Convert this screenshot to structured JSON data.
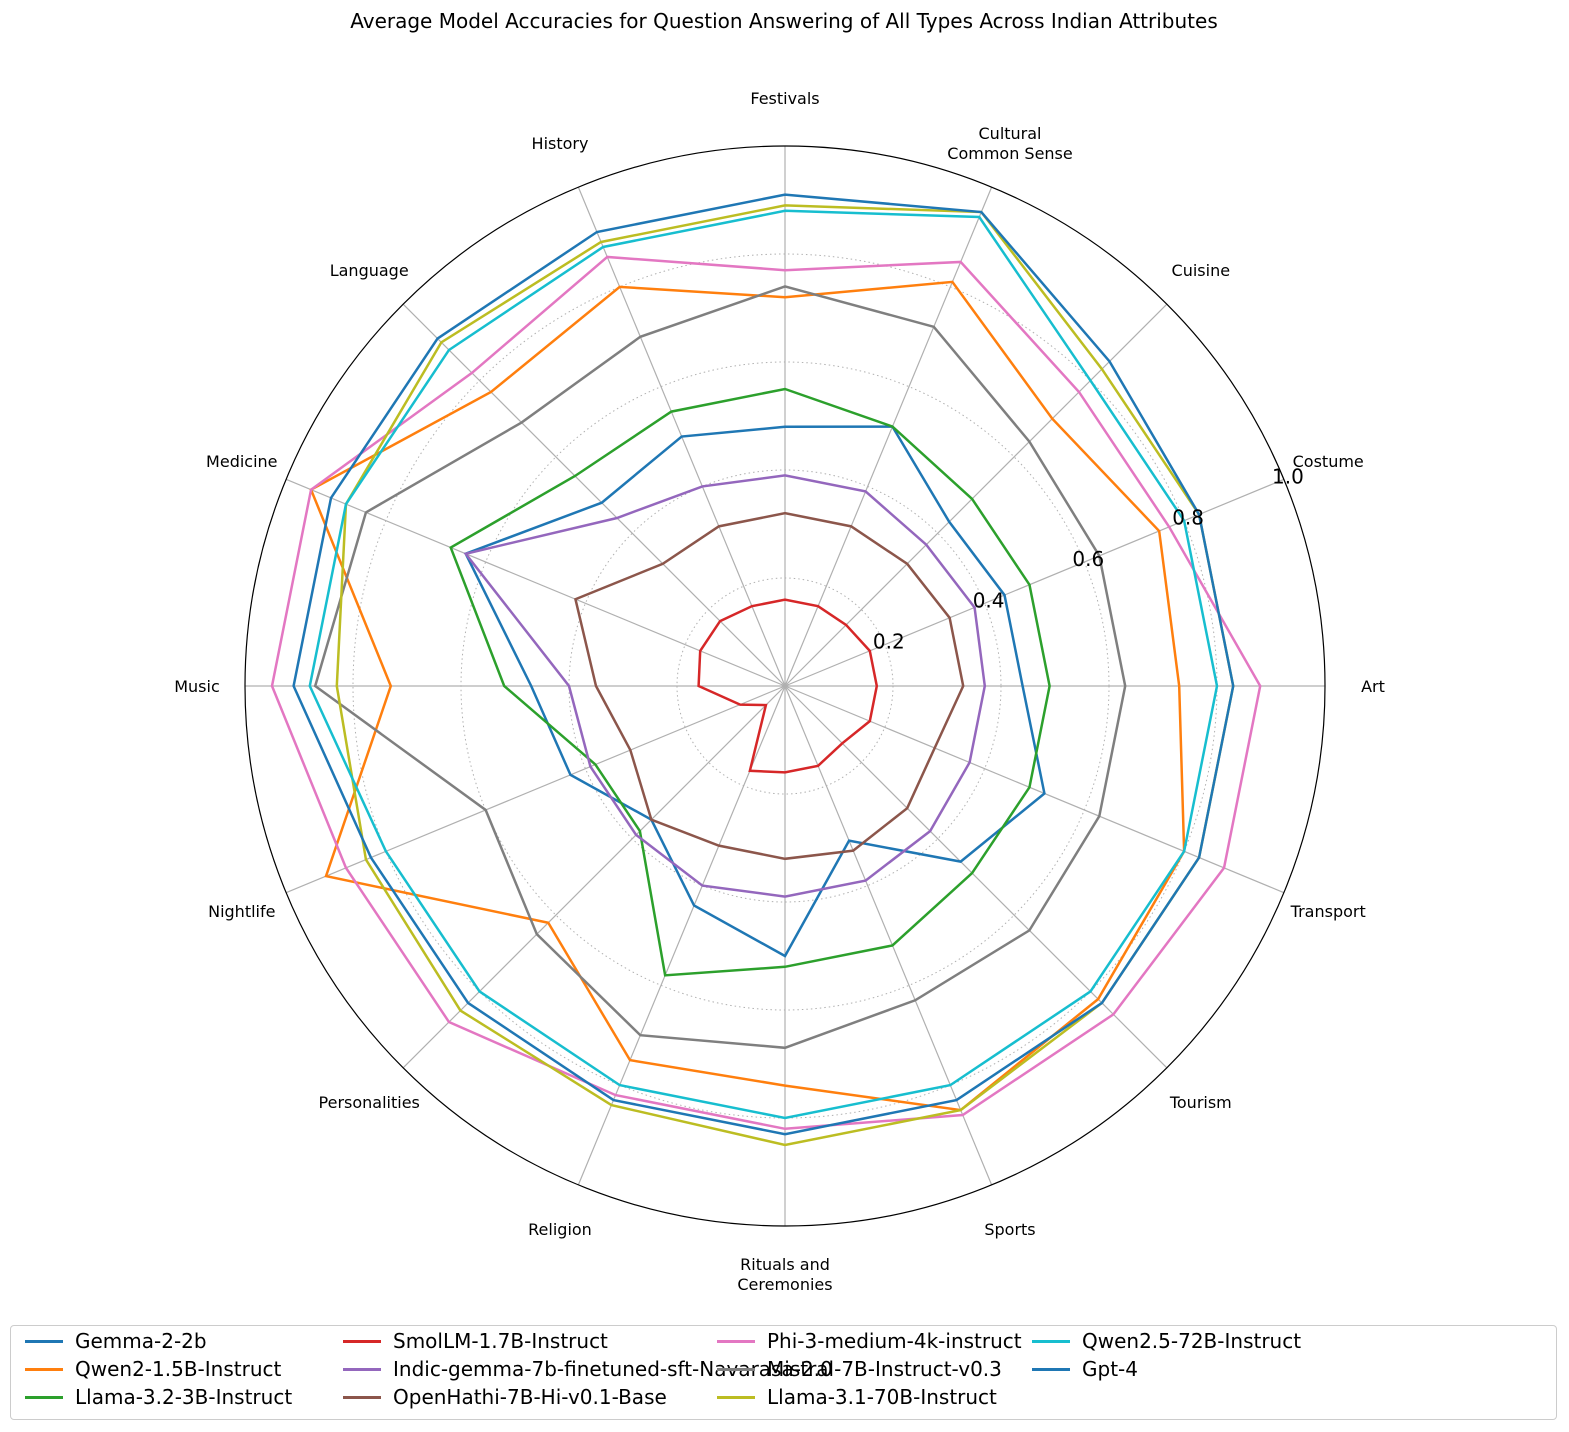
{
  "chart_data": {
    "type": "radar",
    "title": "Average Model Accuracies for Question Answering of All Types Across Indian Attributes",
    "categories": [
      "Art",
      "Costume",
      "Cuisine",
      "Cultural\nCommon Sense",
      "Festivals",
      "History",
      "Language",
      "Medicine",
      "Music",
      "Nightlife",
      "Personalities",
      "Religion",
      "Rituals and\nCeremonies",
      "Sports",
      "Tourism",
      "Transport"
    ],
    "rlim": [
      0,
      1.0
    ],
    "radial_ticks": [
      "0.2",
      "0.4",
      "0.6",
      "0.8",
      "1.0"
    ],
    "radial_tick_values": [
      0.2,
      0.4,
      0.6,
      0.8,
      1.0
    ],
    "grid": true,
    "legend_position": "bottom",
    "series": [
      {
        "name": "Gemma-2-2b",
        "color": "#1f77b4",
        "values": [
          0.44,
          0.44,
          0.43,
          0.52,
          0.48,
          0.5,
          0.48,
          0.64,
          0.47,
          0.43,
          0.35,
          0.44,
          0.5,
          0.31,
          0.46,
          0.52
        ]
      },
      {
        "name": "Qwen2-1.5B-Instruct",
        "color": "#ff7f0e",
        "values": [
          0.73,
          0.75,
          0.7,
          0.81,
          0.72,
          0.8,
          0.77,
          0.95,
          0.73,
          0.92,
          0.62,
          0.75,
          0.74,
          0.85,
          0.82,
          0.8
        ]
      },
      {
        "name": "Llama-3.2-3B-Instruct",
        "color": "#2ca02c",
        "values": [
          0.49,
          0.49,
          0.49,
          0.52,
          0.55,
          0.55,
          0.55,
          0.67,
          0.52,
          0.38,
          0.38,
          0.58,
          0.52,
          0.52,
          0.49,
          0.49
        ]
      },
      {
        "name": "SmolLM-1.7B-Instruct",
        "color": "#d62728",
        "values": [
          0.17,
          0.17,
          0.16,
          0.16,
          0.16,
          0.16,
          0.17,
          0.17,
          0.16,
          0.09,
          0.05,
          0.17,
          0.16,
          0.16,
          0.15,
          0.17
        ]
      },
      {
        "name": "Indic-gemma-7b-finetuned-sft-Navarasa-2.0",
        "color": "#9467bd",
        "values": [
          0.37,
          0.38,
          0.37,
          0.39,
          0.39,
          0.4,
          0.44,
          0.64,
          0.4,
          0.39,
          0.39,
          0.4,
          0.39,
          0.39,
          0.38,
          0.37
        ]
      },
      {
        "name": "OpenHathi-7B-Hi-v0.1-Base",
        "color": "#8c564b",
        "values": [
          0.33,
          0.33,
          0.32,
          0.32,
          0.32,
          0.32,
          0.32,
          0.42,
          0.35,
          0.31,
          0.35,
          0.32,
          0.32,
          0.33,
          0.32,
          0.3
        ]
      },
      {
        "name": "Phi-3-medium-4k-instruct",
        "color": "#e377c2",
        "values": [
          0.88,
          0.77,
          0.77,
          0.85,
          0.77,
          0.86,
          0.82,
          0.95,
          0.95,
          0.88,
          0.88,
          0.82,
          0.82,
          0.86,
          0.86,
          0.88
        ]
      },
      {
        "name": "Mistral-7B-Instruct-v0.3",
        "color": "#7f7f7f",
        "values": [
          0.63,
          0.63,
          0.64,
          0.72,
          0.74,
          0.7,
          0.69,
          0.84,
          0.87,
          0.6,
          0.65,
          0.7,
          0.67,
          0.63,
          0.64,
          0.63
        ]
      },
      {
        "name": "Llama-3.1-70B-Instruct",
        "color": "#bcbd22",
        "values": [
          0.83,
          0.83,
          0.83,
          0.95,
          0.89,
          0.89,
          0.9,
          0.88,
          0.83,
          0.84,
          0.85,
          0.84,
          0.85,
          0.85,
          0.83,
          0.83
        ]
      },
      {
        "name": "Qwen2.5-72B-Instruct",
        "color": "#17becf",
        "values": [
          0.8,
          0.8,
          0.8,
          0.94,
          0.88,
          0.88,
          0.88,
          0.88,
          0.88,
          0.8,
          0.8,
          0.8,
          0.8,
          0.8,
          0.8,
          0.8
        ]
      },
      {
        "name": "Gpt-4",
        "color": "#1f77b4",
        "values": [
          0.83,
          0.83,
          0.85,
          0.95,
          0.91,
          0.91,
          0.91,
          0.91,
          0.91,
          0.83,
          0.83,
          0.83,
          0.83,
          0.83,
          0.83,
          0.83
        ]
      }
    ]
  }
}
